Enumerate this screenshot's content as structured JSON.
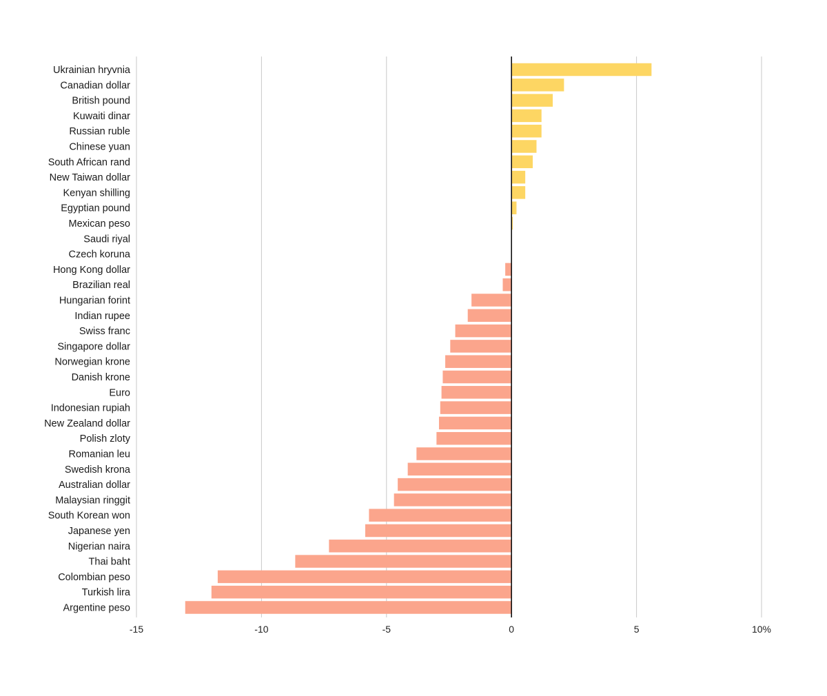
{
  "chart_data": {
    "type": "bar",
    "orientation": "horizontal",
    "title": "",
    "xlabel": "",
    "ylabel": "",
    "xlim": [
      -15,
      10
    ],
    "grid": true,
    "tick_values": [
      -15,
      -10,
      -5,
      0,
      5,
      10
    ],
    "tick_labels": [
      "-15",
      "-10",
      "-5",
      "0",
      "5",
      "10%"
    ],
    "colors": {
      "positive": "#FDD663",
      "negative": "#FBA58C",
      "zero_line": "#111111",
      "grid": "#c8c8c8"
    },
    "categories": [
      "Ukrainian hryvnia",
      "Canadian dollar",
      "British pound",
      "Kuwaiti dinar",
      "Russian ruble",
      "Chinese yuan",
      "South African rand",
      "New Taiwan dollar",
      "Kenyan shilling",
      "Egyptian pound",
      "Mexican peso",
      "Saudi riyal",
      "Czech koruna",
      "Hong Kong dollar",
      "Brazilian real",
      "Hungarian forint",
      "Indian rupee",
      "Swiss franc",
      "Singapore dollar",
      "Norwegian krone",
      "Danish krone",
      "Euro",
      "Indonesian rupiah",
      "New Zealand dollar",
      "Polish zloty",
      "Romanian leu",
      "Swedish krona",
      "Australian dollar",
      "Malaysian ringgit",
      "South Korean won",
      "Japanese yen",
      "Nigerian naira",
      "Thai baht",
      "Colombian peso",
      "Turkish lira",
      "Argentine peso"
    ],
    "values": [
      5.6,
      2.1,
      1.65,
      1.2,
      1.2,
      1.0,
      0.85,
      0.55,
      0.55,
      0.2,
      0.05,
      0.0,
      0.0,
      -0.25,
      -0.35,
      -1.6,
      -1.75,
      -2.25,
      -2.45,
      -2.65,
      -2.75,
      -2.8,
      -2.85,
      -2.9,
      -3.0,
      -3.8,
      -4.15,
      -4.55,
      -4.7,
      -5.7,
      -5.85,
      -7.3,
      -8.65,
      -11.75,
      -12.0,
      -13.05
    ]
  }
}
